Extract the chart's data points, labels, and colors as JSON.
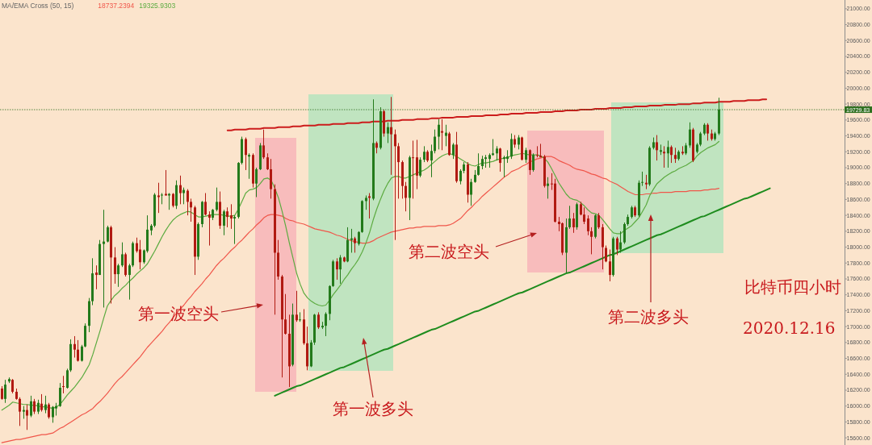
{
  "chart_data": {
    "type": "candlestick",
    "legend_title": "MA/EMA Cross (50, 15)",
    "legend": "top left",
    "tick_labels": "y",
    "ylim": [
      15510,
      21110
    ],
    "yticks": [
      {
        "value": 15600,
        "label": "15600.00"
      },
      {
        "value": 15800,
        "label": "15800.00"
      },
      {
        "value": 16000,
        "label": "16000.00"
      },
      {
        "value": 16200,
        "label": "16200.00"
      },
      {
        "value": 16400,
        "label": "16400.00"
      },
      {
        "value": 16600,
        "label": "16600.00"
      },
      {
        "value": 16800,
        "label": "16800.00"
      },
      {
        "value": 17000,
        "label": "17000.00"
      },
      {
        "value": 17200,
        "label": "17200.00"
      },
      {
        "value": 17400,
        "label": "17400.00"
      },
      {
        "value": 17600,
        "label": "17600.00"
      },
      {
        "value": 17800,
        "label": "17800.00"
      },
      {
        "value": 18000,
        "label": "18000.00"
      },
      {
        "value": 18200,
        "label": "18200.00"
      },
      {
        "value": 18400,
        "label": "18400.00"
      },
      {
        "value": 18600,
        "label": "18600.00"
      },
      {
        "value": 18800,
        "label": "18800.00"
      },
      {
        "value": 19000,
        "label": "19000.00"
      },
      {
        "value": 19200,
        "label": "19200.00"
      },
      {
        "value": 19400,
        "label": "19400.00"
      },
      {
        "value": 19600,
        "label": "19600.00"
      },
      {
        "value": 19800,
        "label": "19800.00"
      },
      {
        "value": 20000,
        "label": "20000.00"
      },
      {
        "value": 20200,
        "label": "20200.00"
      },
      {
        "value": 20400,
        "label": "20400.00"
      },
      {
        "value": 20600,
        "label": "20600.00"
      },
      {
        "value": 20800,
        "label": "20800.00"
      },
      {
        "value": 21000,
        "label": "21000.00"
      }
    ],
    "categories": [
      null,
      null,
      null,
      null,
      null,
      null,
      null,
      null,
      null,
      null,
      null,
      null,
      null,
      null,
      null,
      null,
      null,
      null,
      null,
      null,
      null,
      null,
      null,
      null,
      null,
      null,
      null,
      null,
      null,
      null,
      null,
      null,
      null,
      null,
      null,
      null,
      null,
      null,
      null,
      null,
      null,
      null,
      null,
      null,
      null,
      null,
      null,
      null,
      null,
      null,
      null,
      null,
      null,
      null,
      null,
      null,
      null,
      null,
      null,
      null,
      null,
      null,
      null,
      null,
      null,
      null,
      null,
      null,
      null,
      null,
      null,
      null,
      null,
      null,
      null,
      null,
      null,
      null,
      null,
      null,
      null,
      null,
      null,
      null,
      null,
      null,
      null,
      null,
      null,
      null,
      null,
      null,
      null,
      null,
      null,
      null,
      null,
      null,
      null,
      null,
      null,
      null,
      null,
      null,
      null,
      null,
      null,
      null,
      null,
      null,
      null,
      null,
      null,
      null,
      null,
      null,
      null,
      null,
      null,
      null,
      null,
      null,
      null,
      null,
      null,
      null,
      null,
      null,
      null,
      null,
      null,
      null,
      null,
      null,
      null,
      null,
      null,
      null,
      null,
      null,
      null,
      null,
      null,
      null,
      null,
      null,
      null,
      null,
      null,
      null,
      null,
      null,
      null,
      null,
      null,
      null,
      null,
      null,
      null,
      null,
      null,
      null,
      null,
      null,
      null,
      null,
      null,
      null,
      null,
      null,
      null,
      null,
      null,
      null,
      null,
      null,
      null,
      null,
      null,
      null,
      null,
      null,
      null,
      null,
      null,
      null,
      null,
      null,
      null,
      null,
      null,
      null,
      null,
      null,
      null,
      null,
      null,
      null,
      null,
      null,
      null,
      null,
      null,
      null,
      null,
      null,
      null,
      null,
      null,
      null,
      null,
      null,
      null,
      null,
      null,
      null,
      null,
      null,
      null,
      null,
      null,
      null,
      null,
      null,
      null,
      null,
      null,
      null,
      null,
      null,
      null,
      null
    ],
    "ohlc": [
      [
        16220,
        16250,
        16080,
        16090
      ],
      [
        16090,
        16330,
        16040,
        16270
      ],
      [
        16310,
        16360,
        16290,
        16340
      ],
      [
        16330,
        16340,
        16160,
        16180
      ],
      [
        16180,
        16220,
        16080,
        16090
      ],
      [
        16090,
        16110,
        15750,
        15930
      ],
      [
        15930,
        16000,
        15840,
        15950
      ],
      [
        15950,
        16020,
        15700,
        15880
      ],
      [
        15880,
        16130,
        15860,
        16060
      ],
      [
        16060,
        16090,
        15900,
        15930
      ],
      [
        15930,
        16080,
        15900,
        16040
      ],
      [
        16030,
        16150,
        15930,
        15950
      ],
      [
        15950,
        16130,
        15910,
        16020
      ],
      [
        16020,
        16040,
        15840,
        15860
      ],
      [
        15860,
        16000,
        15790,
        15990
      ],
      [
        15970,
        16040,
        15880,
        16000
      ],
      [
        16000,
        16290,
        15990,
        16230
      ],
      [
        16250,
        16380,
        16160,
        16240
      ],
      [
        16230,
        16470,
        16220,
        16450
      ],
      [
        16450,
        16840,
        16430,
        16780
      ],
      [
        16780,
        16880,
        16610,
        16710
      ],
      [
        16710,
        16830,
        16560,
        16570
      ],
      [
        16570,
        16770,
        16560,
        16750
      ],
      [
        16750,
        17040,
        16740,
        17010
      ],
      [
        17010,
        17360,
        16930,
        17320
      ],
      [
        17320,
        17860,
        17270,
        17670
      ],
      [
        17680,
        17770,
        17470,
        17650
      ],
      [
        17650,
        18090,
        17650,
        18040
      ],
      [
        18040,
        18470,
        17240,
        18070
      ],
      [
        18070,
        18270,
        18060,
        18250
      ],
      [
        18250,
        18270,
        17290,
        17870
      ],
      [
        17870,
        18000,
        17540,
        17660
      ],
      [
        17660,
        17790,
        17500,
        17770
      ],
      [
        17770,
        18060,
        17750,
        17910
      ],
      [
        17910,
        17930,
        17630,
        17650
      ],
      [
        17650,
        17790,
        17340,
        17770
      ],
      [
        17770,
        18070,
        17750,
        18050
      ],
      [
        18050,
        18120,
        17930,
        17950
      ],
      [
        17970,
        18090,
        17720,
        17810
      ],
      [
        17810,
        17970,
        17790,
        17960
      ],
      [
        17950,
        18400,
        17930,
        18220
      ],
      [
        18210,
        18290,
        18150,
        18270
      ],
      [
        18270,
        18680,
        18250,
        18660
      ],
      [
        18650,
        18810,
        18430,
        18630
      ],
      [
        18650,
        18680,
        18540,
        18660
      ],
      [
        18670,
        18970,
        18650,
        18650
      ],
      [
        18650,
        18680,
        18470,
        18670
      ],
      [
        18670,
        18680,
        18500,
        18520
      ],
      [
        18520,
        18840,
        18480,
        18780
      ],
      [
        18780,
        18900,
        18540,
        18680
      ],
      [
        18680,
        18750,
        18540,
        18720
      ],
      [
        18710,
        18730,
        18400,
        18570
      ],
      [
        18570,
        18610,
        18320,
        18500
      ],
      [
        18500,
        18520,
        17650,
        17880
      ],
      [
        17880,
        18310,
        17840,
        18290
      ],
      [
        18290,
        18580,
        18250,
        18570
      ],
      [
        18570,
        18680,
        18400,
        18410
      ],
      [
        18410,
        18450,
        18020,
        18370
      ],
      [
        18370,
        18480,
        18340,
        18470
      ],
      [
        18470,
        18750,
        18450,
        18570
      ],
      [
        18570,
        18700,
        18230,
        18270
      ],
      [
        18270,
        18470,
        18150,
        18450
      ],
      [
        18450,
        18500,
        18250,
        18380
      ],
      [
        18400,
        18540,
        18230,
        18360
      ],
      [
        18360,
        18400,
        18040,
        18380
      ],
      [
        18380,
        19070,
        18360,
        19060
      ],
      [
        19060,
        19390,
        19040,
        19360
      ],
      [
        19360,
        19380,
        18970,
        19160
      ],
      [
        19140,
        19180,
        18860,
        19160
      ],
      [
        19160,
        19180,
        18750,
        18800
      ],
      [
        18800,
        19000,
        18630,
        18980
      ],
      [
        18980,
        19310,
        18970,
        19280
      ],
      [
        19280,
        19480,
        19110,
        19130
      ],
      [
        19130,
        19180,
        18970,
        18980
      ],
      [
        18980,
        19110,
        18610,
        18730
      ],
      [
        18730,
        18790,
        17150,
        17930
      ],
      [
        17930,
        18090,
        17590,
        17630
      ],
      [
        17630,
        17650,
        16360,
        17090
      ],
      [
        17090,
        17410,
        16900,
        16910
      ],
      [
        16910,
        17150,
        16240,
        16500
      ],
      [
        16520,
        17290,
        16500,
        17150
      ],
      [
        17150,
        17450,
        17060,
        17080
      ],
      [
        17080,
        17180,
        17060,
        17090
      ],
      [
        17090,
        17220,
        16770,
        16790
      ],
      [
        16790,
        17000,
        16450,
        16500
      ],
      [
        16500,
        16830,
        16490,
        16800
      ],
      [
        16800,
        17160,
        16770,
        17150
      ],
      [
        17150,
        17180,
        16970,
        16990
      ],
      [
        16990,
        17060,
        16970,
        17010
      ],
      [
        17010,
        17180,
        16880,
        17160
      ],
      [
        17160,
        17520,
        17080,
        17510
      ],
      [
        17510,
        17840,
        17500,
        17820
      ],
      [
        17820,
        17860,
        17590,
        17720
      ],
      [
        17720,
        17900,
        17540,
        17870
      ],
      [
        17870,
        17880,
        17810,
        17820
      ],
      [
        17820,
        18250,
        17810,
        18090
      ],
      [
        18090,
        18230,
        17930,
        18110
      ],
      [
        18110,
        18130,
        17930,
        18050
      ],
      [
        18040,
        18200,
        18020,
        18190
      ],
      [
        18190,
        18590,
        18180,
        18580
      ],
      [
        18580,
        18650,
        18470,
        18620
      ],
      [
        18640,
        18680,
        18360,
        18620
      ],
      [
        18610,
        19860,
        18590,
        19310
      ],
      [
        19310,
        19330,
        19180,
        19250
      ],
      [
        19250,
        19760,
        19230,
        19710
      ],
      [
        19710,
        19730,
        19390,
        19430
      ],
      [
        19430,
        19570,
        19310,
        19510
      ],
      [
        19510,
        19890,
        18910,
        19420
      ],
      [
        19420,
        19480,
        18090,
        19270
      ],
      [
        19270,
        19310,
        18610,
        19070
      ],
      [
        19070,
        19090,
        18610,
        18770
      ],
      [
        18770,
        18820,
        18450,
        18620
      ],
      [
        18620,
        19150,
        18340,
        19130
      ],
      [
        19130,
        19340,
        18610,
        19120
      ],
      [
        19130,
        19350,
        18730,
        18900
      ],
      [
        18900,
        19130,
        18880,
        19100
      ],
      [
        19100,
        19270,
        19070,
        19200
      ],
      [
        19200,
        19220,
        19070,
        19090
      ],
      [
        19090,
        19290,
        18880,
        19210
      ],
      [
        19210,
        19480,
        19180,
        19390
      ],
      [
        19390,
        19610,
        19230,
        19540
      ],
      [
        19460,
        19610,
        19220,
        19440
      ],
      [
        19400,
        19540,
        19270,
        19440
      ],
      [
        19430,
        19450,
        19150,
        19160
      ],
      [
        19160,
        19310,
        19110,
        19290
      ],
      [
        19290,
        19450,
        18810,
        18830
      ],
      [
        18830,
        18980,
        18790,
        18960
      ],
      [
        18960,
        19070,
        18930,
        19040
      ],
      [
        19040,
        19070,
        18560,
        18660
      ],
      [
        18660,
        18860,
        18520,
        18820
      ],
      [
        18820,
        18970,
        18810,
        18910
      ],
      [
        18910,
        19180,
        18900,
        19020
      ],
      [
        19020,
        19150,
        18980,
        19110
      ],
      [
        19110,
        19160,
        19000,
        19130
      ],
      [
        19110,
        19180,
        19000,
        19160
      ],
      [
        19160,
        19360,
        19150,
        19180
      ],
      [
        19180,
        19270,
        19090,
        19240
      ],
      [
        19240,
        19250,
        18950,
        19060
      ],
      [
        19110,
        19150,
        18880,
        19130
      ],
      [
        19110,
        19220,
        19060,
        19140
      ],
      [
        19140,
        19430,
        19110,
        19360
      ],
      [
        19360,
        19410,
        19250,
        19290
      ],
      [
        19290,
        19410,
        19230,
        19380
      ],
      [
        19380,
        19390,
        19090,
        19100
      ],
      [
        19100,
        19250,
        19060,
        19220
      ],
      [
        19220,
        19230,
        18910,
        18970
      ],
      [
        18970,
        19180,
        18950,
        19160
      ],
      [
        19160,
        19270,
        19130,
        19150
      ],
      [
        19150,
        19300,
        19130,
        19130
      ],
      [
        19140,
        19160,
        18750,
        18770
      ],
      [
        18770,
        18880,
        18610,
        18800
      ],
      [
        18800,
        18930,
        18720,
        18790
      ],
      [
        18800,
        18860,
        18310,
        18320
      ],
      [
        18320,
        18380,
        18200,
        18290
      ],
      [
        18300,
        18310,
        17900,
        17930
      ],
      [
        17930,
        18360,
        17680,
        18250
      ],
      [
        18250,
        18520,
        18230,
        18360
      ],
      [
        18360,
        18430,
        18180,
        18250
      ],
      [
        18250,
        18560,
        18220,
        18540
      ],
      [
        18540,
        18570,
        18400,
        18410
      ],
      [
        18410,
        18500,
        18290,
        18320
      ],
      [
        18360,
        18400,
        18150,
        18200
      ],
      [
        18200,
        18250,
        17910,
        18130
      ],
      [
        18130,
        18410,
        18110,
        18400
      ],
      [
        18400,
        18430,
        18230,
        18250
      ],
      [
        18250,
        18290,
        17720,
        18000
      ],
      [
        17990,
        18020,
        17810,
        17820
      ],
      [
        17820,
        17970,
        17570,
        17650
      ],
      [
        17650,
        18130,
        17630,
        18110
      ],
      [
        18110,
        18130,
        17900,
        17970
      ],
      [
        17970,
        18200,
        17930,
        18060
      ],
      [
        18060,
        18310,
        18040,
        18290
      ],
      [
        18290,
        18410,
        18270,
        18380
      ],
      [
        18380,
        18520,
        18360,
        18500
      ],
      [
        18500,
        18520,
        18380,
        18400
      ],
      [
        18400,
        18840,
        18380,
        18810
      ],
      [
        18810,
        18950,
        18770,
        18820
      ],
      [
        18810,
        18910,
        18730,
        18790
      ],
      [
        18790,
        19270,
        18770,
        19250
      ],
      [
        19250,
        19380,
        19230,
        19320
      ],
      [
        19320,
        19410,
        19090,
        19220
      ],
      [
        19200,
        19290,
        19160,
        19220
      ],
      [
        19200,
        19270,
        19000,
        19180
      ],
      [
        19180,
        19340,
        19000,
        19260
      ],
      [
        19260,
        19280,
        19060,
        19160
      ],
      [
        19160,
        19250,
        19060,
        19110
      ],
      [
        19110,
        19220,
        19090,
        19200
      ],
      [
        19200,
        19270,
        19160,
        19180
      ],
      [
        19180,
        19310,
        19160,
        19280
      ],
      [
        19280,
        19570,
        19250,
        19480
      ],
      [
        19480,
        19500,
        19070,
        19090
      ],
      [
        19200,
        19310,
        19180,
        19290
      ],
      [
        19290,
        19450,
        19270,
        19430
      ],
      [
        19430,
        19560,
        19410,
        19540
      ],
      [
        19540,
        19560,
        19340,
        19430
      ],
      [
        19430,
        19480,
        19340,
        19360
      ],
      [
        19360,
        19450,
        19340,
        19430
      ],
      [
        19430,
        19880,
        19410,
        19730
      ],
      null,
      null,
      null,
      null,
      null,
      null,
      null,
      null,
      null,
      null,
      null,
      null,
      null,
      null,
      null,
      null,
      null,
      null,
      null,
      null,
      null,
      null,
      null,
      null,
      null,
      null,
      null,
      null,
      null,
      null,
      null,
      null,
      null,
      null
    ],
    "series": [
      {
        "type": "line",
        "name": "18737.2394",
        "color": "#f0564a",
        "values": [
          15540,
          15550,
          15560,
          15570,
          15580,
          15580,
          15590,
          15600,
          15610,
          15620,
          15630,
          15640,
          15640,
          15650,
          15660,
          15690,
          15720,
          15740,
          15770,
          15800,
          15830,
          15860,
          15890,
          15910,
          15940,
          15970,
          16020,
          16060,
          16110,
          16160,
          16220,
          16280,
          16330,
          16370,
          16420,
          16470,
          16520,
          16570,
          16620,
          16680,
          16740,
          16790,
          16840,
          16890,
          16940,
          17000,
          17050,
          17110,
          17170,
          17220,
          17270,
          17330,
          17380,
          17440,
          17490,
          17540,
          17600,
          17650,
          17710,
          17770,
          17820,
          17860,
          17910,
          17960,
          18000,
          18050,
          18090,
          18140,
          18190,
          18230,
          18280,
          18320,
          18370,
          18400,
          18410,
          18410,
          18400,
          18390,
          18360,
          18340,
          18330,
          18310,
          18300,
          18290,
          18270,
          18250,
          18230,
          18220,
          18210,
          18200,
          18190,
          18170,
          18150,
          18140,
          18120,
          18100,
          18080,
          18070,
          18060,
          18050,
          18050,
          18060,
          18080,
          18110,
          18130,
          18150,
          18170,
          18190,
          18200,
          18210,
          18220,
          18230,
          18240,
          18240,
          18250,
          18250,
          18260,
          18260,
          18260,
          18260,
          18270,
          18270,
          18270,
          18280,
          18300,
          18330,
          18360,
          18410,
          18460,
          18500,
          18550,
          18590,
          18640,
          18680,
          18720,
          18760,
          18800,
          18840,
          18880,
          18910,
          18950,
          18970,
          18990,
          19020,
          19040,
          19070,
          19090,
          19110,
          19120,
          19140,
          19140,
          19140,
          19120,
          19090,
          19070,
          19050,
          19030,
          19000,
          18980,
          18970,
          18960,
          18940,
          18920,
          18910,
          18890,
          18870,
          18860,
          18830,
          18810,
          18790,
          18760,
          18730,
          18700,
          18680,
          18660,
          18660,
          18660,
          18670,
          18670,
          18680,
          18680,
          18690,
          18690,
          18690,
          18690,
          18700,
          18700,
          18700,
          18700,
          18710,
          18710,
          18710,
          18710,
          18720,
          18720,
          18730,
          18730,
          18740,
          null,
          null,
          null,
          null,
          null,
          null,
          null,
          null,
          null,
          null,
          null,
          null,
          null,
          null,
          null,
          null,
          null,
          null,
          null,
          null,
          null,
          null,
          null,
          null,
          null,
          null,
          null,
          null,
          null,
          null,
          null,
          null,
          null,
          null
        ]
      },
      {
        "type": "line",
        "name": "19325.9303",
        "color": "#5cab40",
        "values": [
          15950,
          15980,
          16010,
          16050,
          16040,
          16030,
          16020,
          16020,
          16010,
          16010,
          16000,
          15990,
          15990,
          15980,
          15970,
          15990,
          16020,
          16080,
          16140,
          16190,
          16240,
          16300,
          16360,
          16440,
          16520,
          16650,
          16800,
          16950,
          17110,
          17260,
          17330,
          17390,
          17430,
          17480,
          17520,
          17570,
          17610,
          17660,
          17700,
          17740,
          17790,
          17870,
          17950,
          18040,
          18130,
          18210,
          18280,
          18340,
          18380,
          18410,
          18430,
          18450,
          18440,
          18410,
          18380,
          18380,
          18390,
          18400,
          18410,
          18410,
          18410,
          18400,
          18390,
          18390,
          18400,
          18480,
          18580,
          18680,
          18720,
          18730,
          18750,
          18800,
          18860,
          18870,
          18840,
          18740,
          18620,
          18450,
          18260,
          18050,
          17860,
          17670,
          17530,
          17420,
          17360,
          17320,
          17290,
          17270,
          17260,
          17270,
          17330,
          17400,
          17460,
          17520,
          17590,
          17650,
          17720,
          17780,
          17850,
          17940,
          18050,
          18180,
          18340,
          18480,
          18600,
          18710,
          18800,
          18870,
          18890,
          18890,
          18870,
          18870,
          18890,
          18910,
          18930,
          18950,
          18970,
          19000,
          19040,
          19080,
          19120,
          19150,
          19170,
          19180,
          19160,
          19140,
          19110,
          19080,
          19050,
          19030,
          19020,
          19040,
          19060,
          19060,
          19070,
          19080,
          19100,
          19110,
          19120,
          19130,
          19150,
          19160,
          19170,
          19180,
          19170,
          19160,
          19160,
          19160,
          19150,
          19120,
          19070,
          18990,
          18900,
          18810,
          18740,
          18670,
          18620,
          18600,
          18590,
          18560,
          18520,
          18470,
          18430,
          18420,
          18400,
          18350,
          18290,
          18230,
          18180,
          18170,
          18170,
          18210,
          18240,
          18270,
          18320,
          18370,
          18450,
          18530,
          18650,
          18730,
          18800,
          18840,
          18880,
          18910,
          18940,
          18960,
          18990,
          19010,
          19030,
          19060,
          19090,
          19150,
          19190,
          19220,
          19250,
          19270,
          19290,
          19330,
          null,
          null,
          null,
          null,
          null,
          null,
          null,
          null,
          null,
          null,
          null,
          null,
          null,
          null,
          null,
          null,
          null,
          null,
          null,
          null,
          null,
          null,
          null,
          null,
          null,
          null,
          null,
          null,
          null,
          null,
          null,
          null,
          null,
          null
        ]
      },
      {
        "type": "line",
        "color": "#cc1c1c",
        "values": [
          null,
          null,
          null,
          null,
          null,
          null,
          null,
          null,
          null,
          null,
          null,
          null,
          null,
          null,
          null,
          null,
          null,
          null,
          null,
          null,
          null,
          null,
          null,
          null,
          null,
          null,
          null,
          null,
          null,
          null,
          null,
          null,
          null,
          null,
          null,
          null,
          null,
          null,
          null,
          null,
          null,
          null,
          null,
          null,
          null,
          null,
          null,
          null,
          null,
          null,
          null,
          null,
          null,
          null,
          null,
          null,
          null,
          null,
          null,
          null,
          null,
          null,
          19470,
          19470,
          19480,
          19480,
          19480,
          19480,
          19490,
          19490,
          19490,
          19490,
          19500,
          19500,
          19500,
          19500,
          19510,
          19510,
          19510,
          19510,
          19520,
          19520,
          19520,
          19530,
          19530,
          19530,
          19530,
          19540,
          19540,
          19540,
          19540,
          19550,
          19550,
          19550,
          19550,
          19560,
          19560,
          19560,
          19560,
          19570,
          19570,
          19570,
          19580,
          19580,
          19580,
          19580,
          19590,
          19590,
          19590,
          19590,
          19600,
          19600,
          19600,
          19600,
          19610,
          19610,
          19610,
          19610,
          19620,
          19620,
          19620,
          19630,
          19630,
          19630,
          19630,
          19640,
          19640,
          19640,
          19640,
          19650,
          19650,
          19650,
          19650,
          19660,
          19660,
          19660,
          19660,
          19670,
          19670,
          19670,
          19680,
          19680,
          19680,
          19680,
          19690,
          19690,
          19690,
          19690,
          19700,
          19700,
          19700,
          19700,
          19710,
          19710,
          19710,
          19720,
          19720,
          19720,
          19720,
          19730,
          19730,
          19730,
          19730,
          19740,
          19740,
          19740,
          19740,
          19750,
          19750,
          19750,
          19750,
          19760,
          19760,
          19760,
          19770,
          19770,
          19770,
          19770,
          19780,
          19780,
          19780,
          19780,
          19790,
          19790,
          19790,
          19790,
          19800,
          19800,
          19800,
          19800,
          19810,
          19810,
          19810,
          19820,
          19820,
          19820,
          19820,
          19830,
          19830,
          19830,
          19830,
          19840,
          19840,
          19840,
          19840,
          19850,
          19850,
          19850,
          19850,
          19860,
          19860,
          null,
          null,
          null,
          null,
          null,
          null,
          null,
          null,
          null,
          null,
          null,
          null,
          null,
          null,
          null,
          null,
          null,
          null,
          null,
          null,
          null
        ]
      },
      {
        "type": "line",
        "color": "#1e8c1e",
        "values": [
          null,
          null,
          null,
          null,
          null,
          null,
          null,
          null,
          null,
          null,
          null,
          null,
          null,
          null,
          null,
          null,
          null,
          null,
          null,
          null,
          null,
          null,
          null,
          null,
          null,
          null,
          null,
          null,
          null,
          null,
          null,
          null,
          null,
          null,
          null,
          null,
          null,
          null,
          null,
          null,
          null,
          null,
          null,
          null,
          null,
          null,
          null,
          null,
          null,
          null,
          null,
          null,
          null,
          null,
          null,
          null,
          null,
          null,
          null,
          null,
          null,
          null,
          null,
          null,
          null,
          null,
          null,
          null,
          null,
          null,
          null,
          null,
          null,
          null,
          null,
          16130,
          16150,
          16170,
          16190,
          16210,
          16230,
          16250,
          16260,
          16280,
          16300,
          16320,
          16340,
          16360,
          16380,
          16400,
          16420,
          16440,
          16460,
          16480,
          16490,
          16510,
          16530,
          16550,
          16570,
          16590,
          16610,
          16630,
          16650,
          16670,
          16690,
          16710,
          16720,
          16740,
          16760,
          16780,
          16800,
          16820,
          16840,
          16860,
          16880,
          16900,
          16920,
          16940,
          16960,
          16970,
          16990,
          17010,
          17030,
          17050,
          17070,
          17090,
          17110,
          17130,
          17150,
          17170,
          17190,
          17200,
          17220,
          17240,
          17260,
          17280,
          17300,
          17320,
          17340,
          17360,
          17380,
          17400,
          17420,
          17430,
          17450,
          17470,
          17490,
          17510,
          17530,
          17550,
          17570,
          17590,
          17610,
          17630,
          17650,
          17670,
          17680,
          17700,
          17720,
          17740,
          17760,
          17780,
          17800,
          17820,
          17840,
          17860,
          17880,
          17900,
          17910,
          17930,
          17950,
          17970,
          17990,
          18010,
          18030,
          18050,
          18070,
          18090,
          18110,
          18130,
          18150,
          18160,
          18180,
          18200,
          18220,
          18240,
          18260,
          18280,
          18300,
          18320,
          18340,
          18360,
          18380,
          18390,
          18410,
          18430,
          18450,
          18470,
          18490,
          18510,
          18530,
          18550,
          18570,
          18590,
          18610,
          18620,
          18640,
          18660,
          18680,
          18700,
          18720,
          18740,
          null,
          null,
          null,
          null,
          null,
          null,
          null,
          null,
          null,
          null,
          null,
          null,
          null,
          null,
          null,
          null,
          null,
          null,
          null,
          null
        ]
      }
    ],
    "ref_lines": [
      {
        "axis": "y",
        "value": 19729.83,
        "color": "#2f6f20",
        "line_style": "dotted"
      }
    ],
    "annotations": [
      "第一波空头",
      "第一波多头",
      "第二波空头",
      "第二波多头",
      "比特币四小时",
      "2020.12.16",
      "19729.83"
    ]
  }
}
